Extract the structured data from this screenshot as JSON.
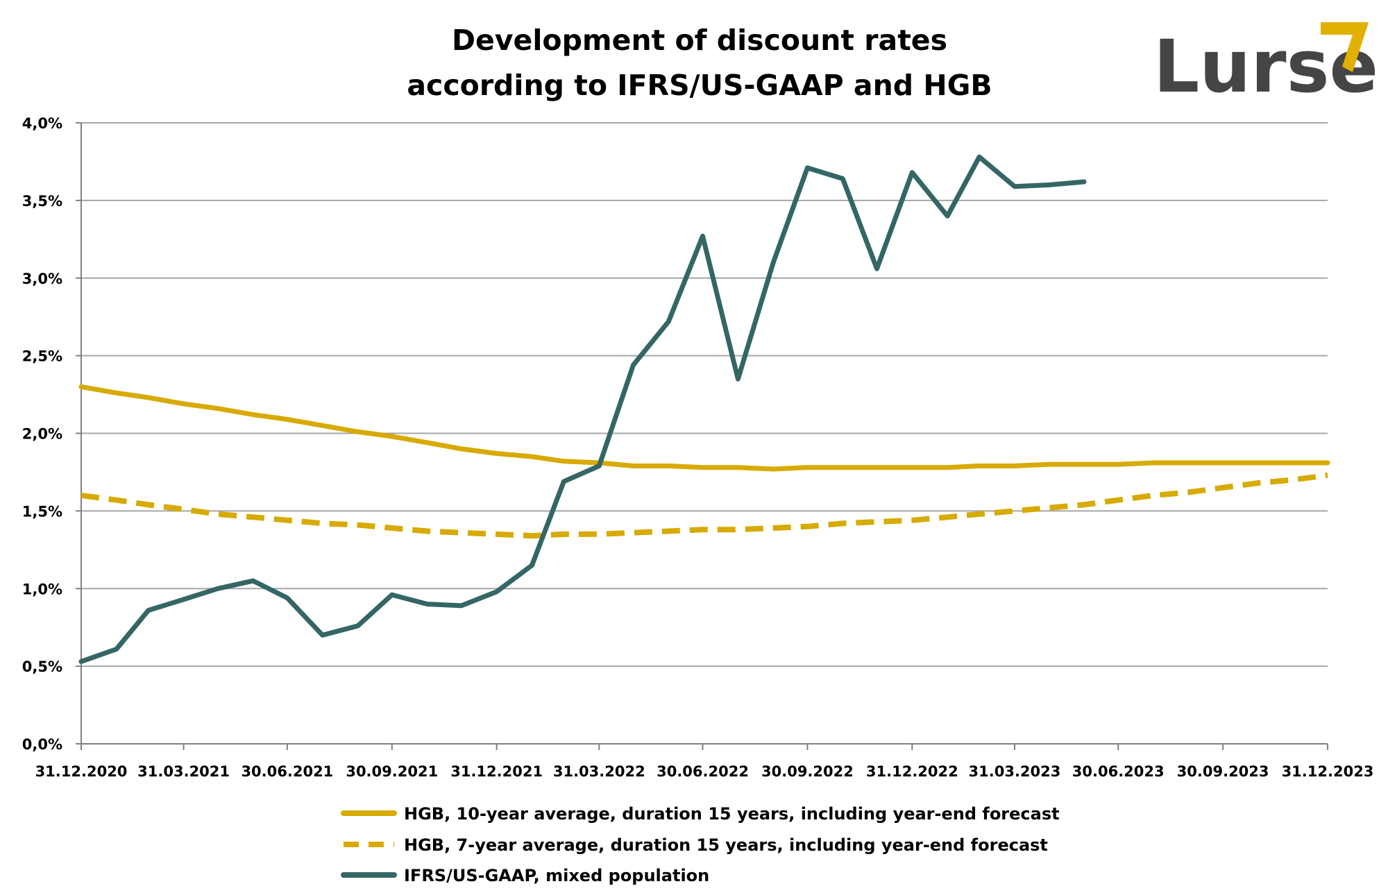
{
  "title_lines": [
    "Development of discount rates",
    "according to IFRS/US-GAAP and HGB"
  ],
  "logo": {
    "text": "Lurse",
    "text_color": "#454545",
    "accent_color": "#e1b000",
    "icon": "chevron-arrow-icon"
  },
  "colors": {
    "hgb": "#d7aa00",
    "ifrs": "#346665",
    "grid": "#a6a6a6",
    "axis": "#808080"
  },
  "chart_data": {
    "type": "line",
    "title": "Development of discount rates according to IFRS/US-GAAP and HGB",
    "xlabel": "",
    "ylabel": "",
    "x_range": [
      "2020-12-31",
      "2023-12-31"
    ],
    "ylim": [
      0,
      4.0
    ],
    "y_ticks": [
      0,
      0.5,
      1.0,
      1.5,
      2.0,
      2.5,
      3.0,
      3.5,
      4.0
    ],
    "y_tick_labels": [
      "0,0%",
      "0,5%",
      "1,0%",
      "1,5%",
      "2,0%",
      "2,5%",
      "3,0%",
      "3,5%",
      "4,0%"
    ],
    "x_ticks": [
      "2020-12-31",
      "2021-03-31",
      "2021-06-30",
      "2021-09-30",
      "2021-12-31",
      "2022-03-31",
      "2022-06-30",
      "2022-09-30",
      "2022-12-31",
      "2023-03-31",
      "2023-06-30",
      "2023-09-30",
      "2023-12-31"
    ],
    "x_tick_labels": [
      "31.12.2020",
      "31.03.2021",
      "30.06.2021",
      "30.09.2021",
      "31.12.2021",
      "31.03.2022",
      "30.06.2022",
      "30.09.2022",
      "31.12.2022",
      "31.03.2023",
      "30.06.2023",
      "30.09.2023",
      "31.12.2023"
    ],
    "grid": true,
    "legend_position": "bottom",
    "series": [
      {
        "name": "HGB, 10-year average, duration 15 years, including year-end forecast",
        "style": "solid",
        "color": "#d7aa00",
        "x": [
          "2020-12-31",
          "2021-01-31",
          "2021-02-28",
          "2021-03-31",
          "2021-04-30",
          "2021-05-31",
          "2021-06-30",
          "2021-07-31",
          "2021-08-31",
          "2021-09-30",
          "2021-10-31",
          "2021-11-30",
          "2021-12-31",
          "2022-01-31",
          "2022-02-28",
          "2022-03-31",
          "2022-04-30",
          "2022-05-31",
          "2022-06-30",
          "2022-07-31",
          "2022-08-31",
          "2022-09-30",
          "2022-10-31",
          "2022-11-30",
          "2022-12-31",
          "2023-01-31",
          "2023-02-28",
          "2023-03-31",
          "2023-04-30",
          "2023-05-31",
          "2023-06-30",
          "2023-07-31",
          "2023-08-31",
          "2023-09-30",
          "2023-10-31",
          "2023-11-30",
          "2023-12-31"
        ],
        "values": [
          2.3,
          2.26,
          2.23,
          2.19,
          2.16,
          2.12,
          2.09,
          2.05,
          2.01,
          1.98,
          1.94,
          1.9,
          1.87,
          1.85,
          1.82,
          1.81,
          1.79,
          1.79,
          1.78,
          1.78,
          1.77,
          1.78,
          1.78,
          1.78,
          1.78,
          1.78,
          1.79,
          1.79,
          1.8,
          1.8,
          1.8,
          1.81,
          1.81,
          1.81,
          1.81,
          1.81,
          1.81
        ]
      },
      {
        "name": "HGB, 7-year average, duration 15 years, including year-end forecast",
        "style": "dashed",
        "color": "#d7aa00",
        "x": [
          "2020-12-31",
          "2021-01-31",
          "2021-02-28",
          "2021-03-31",
          "2021-04-30",
          "2021-05-31",
          "2021-06-30",
          "2021-07-31",
          "2021-08-31",
          "2021-09-30",
          "2021-10-31",
          "2021-11-30",
          "2021-12-31",
          "2022-01-31",
          "2022-02-28",
          "2022-03-31",
          "2022-04-30",
          "2022-05-31",
          "2022-06-30",
          "2022-07-31",
          "2022-08-31",
          "2022-09-30",
          "2022-10-31",
          "2022-11-30",
          "2022-12-31",
          "2023-01-31",
          "2023-02-28",
          "2023-03-31",
          "2023-04-30",
          "2023-05-31",
          "2023-06-30",
          "2023-07-31",
          "2023-08-31",
          "2023-09-30",
          "2023-10-31",
          "2023-11-30",
          "2023-12-31"
        ],
        "values": [
          1.6,
          1.57,
          1.54,
          1.51,
          1.48,
          1.46,
          1.44,
          1.42,
          1.41,
          1.39,
          1.37,
          1.36,
          1.35,
          1.34,
          1.35,
          1.35,
          1.36,
          1.37,
          1.38,
          1.38,
          1.39,
          1.4,
          1.42,
          1.43,
          1.44,
          1.46,
          1.48,
          1.5,
          1.52,
          1.54,
          1.57,
          1.6,
          1.62,
          1.65,
          1.68,
          1.7,
          1.73
        ]
      },
      {
        "name": "IFRS/US-GAAP, mixed population",
        "style": "solid",
        "color": "#346665",
        "x": [
          "2020-12-31",
          "2021-01-31",
          "2021-02-28",
          "2021-03-31",
          "2021-04-30",
          "2021-05-31",
          "2021-06-30",
          "2021-07-31",
          "2021-08-31",
          "2021-09-30",
          "2021-10-31",
          "2021-11-30",
          "2021-12-31",
          "2022-01-31",
          "2022-02-28",
          "2022-03-31",
          "2022-04-30",
          "2022-05-31",
          "2022-06-30",
          "2022-07-31",
          "2022-08-31",
          "2022-09-30",
          "2022-10-31",
          "2022-11-30",
          "2022-12-31",
          "2023-01-31",
          "2023-02-28",
          "2023-03-31",
          "2023-04-30",
          "2023-05-31"
        ],
        "values": [
          0.53,
          0.61,
          0.86,
          0.93,
          1.0,
          1.05,
          0.94,
          0.7,
          0.76,
          0.96,
          0.9,
          0.89,
          0.98,
          1.15,
          1.69,
          1.79,
          2.44,
          2.72,
          3.27,
          2.35,
          3.1,
          3.71,
          3.64,
          3.06,
          3.68,
          3.4,
          3.78,
          3.59,
          3.6,
          3.62
        ]
      }
    ]
  }
}
